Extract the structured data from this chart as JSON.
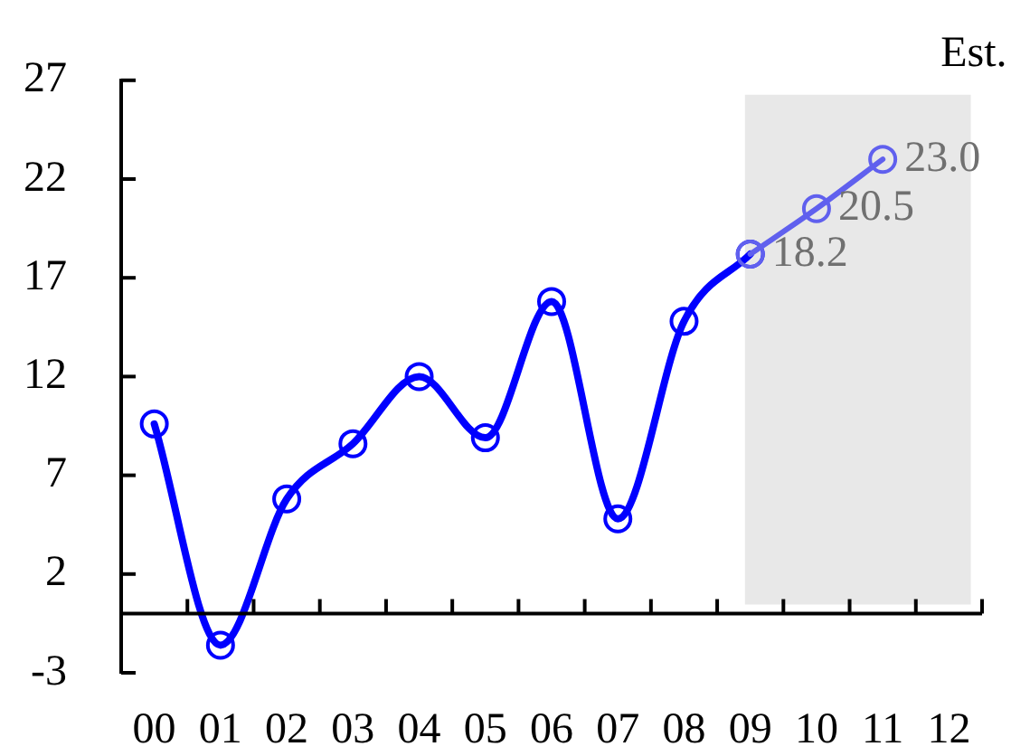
{
  "chart_data": {
    "type": "line",
    "categories": [
      "00",
      "01",
      "02",
      "03",
      "04",
      "05",
      "06",
      "07",
      "08",
      "09",
      "10",
      "11",
      "12"
    ],
    "series": [
      {
        "color": "#0000ff",
        "values": [
          9.6,
          -1.6,
          5.8,
          8.6,
          12.0,
          8.9,
          15.8,
          4.8,
          14.8,
          18.2,
          null,
          null,
          null
        ]
      },
      {
        "color": "#6060ee",
        "values": [
          null,
          null,
          null,
          null,
          null,
          null,
          null,
          null,
          null,
          18.2,
          20.5,
          23.0,
          null
        ],
        "value_labels": [
          null,
          null,
          null,
          null,
          null,
          null,
          null,
          null,
          null,
          "18.2",
          "20.5",
          "23.0",
          null
        ]
      }
    ],
    "ylim": [
      -3,
      27
    ],
    "yticks": [
      -3,
      2,
      7,
      12,
      17,
      22,
      27
    ],
    "bands": [
      {
        "axis": "x",
        "from": "09",
        "to": "12",
        "label": "Est.",
        "color": "#e8e8e8"
      }
    ],
    "marker": "circle",
    "line_style": "solid",
    "grid": false,
    "legend": false
  }
}
